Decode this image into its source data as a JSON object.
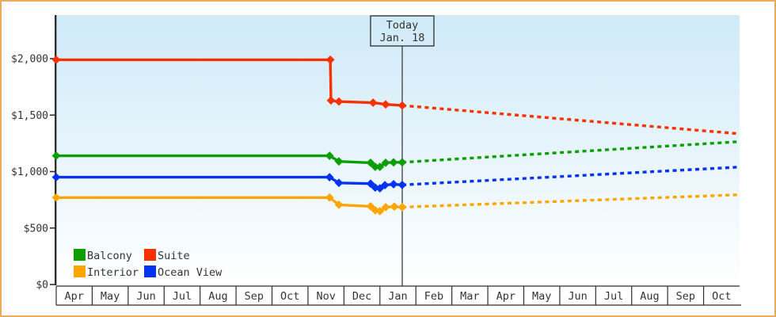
{
  "window": {
    "border_color": "#edaa5e",
    "background": "#ffffff"
  },
  "chart_data": {
    "type": "line",
    "title": "",
    "description": "Cruise cabin price history with dotted future forecast",
    "plot": {
      "bg_gradient_top": "#cfeaf8",
      "bg_gradient_bottom": "#ffffff",
      "axis_color": "#2e2e2e",
      "label_color": "#333333",
      "grid": "off",
      "today_line_color": "#4a4a4a"
    },
    "y_axis": {
      "ticks": [
        {
          "value": 0,
          "label": "$0"
        },
        {
          "value": 500,
          "label": "$500"
        },
        {
          "value": 1000,
          "label": "$1,000"
        },
        {
          "value": 1500,
          "label": "$1,500"
        },
        {
          "value": 2000,
          "label": "$2,000"
        }
      ],
      "ylim": [
        0,
        2386
      ]
    },
    "x_axis": {
      "categories": [
        "Apr",
        "May",
        "Jun",
        "Jul",
        "Aug",
        "Sep",
        "Oct",
        "Nov",
        "Dec",
        "Jan",
        "Feb",
        "Mar",
        "Apr",
        "May",
        "Jun",
        "Jul",
        "Aug",
        "Sep",
        "Oct"
      ]
    },
    "today": {
      "label": "Today",
      "date": "Jan. 18",
      "x": 9.62
    },
    "series": [
      {
        "name": "Suite",
        "color": "#f93000",
        "history": [
          [
            0,
            1990
          ],
          [
            7.62,
            1990
          ],
          [
            7.64,
            1630
          ],
          [
            7.86,
            1620
          ],
          [
            8.81,
            1610
          ],
          [
            9.16,
            1595
          ],
          [
            9.62,
            1585
          ]
        ],
        "forecast": [
          [
            9.62,
            1585
          ],
          [
            19,
            1335
          ]
        ]
      },
      {
        "name": "Balcony",
        "color": "#0a9e00",
        "history": [
          [
            0,
            1140
          ],
          [
            7.6,
            1140
          ],
          [
            7.86,
            1090
          ],
          [
            8.74,
            1078
          ],
          [
            8.87,
            1042
          ],
          [
            9.0,
            1042
          ],
          [
            9.16,
            1078
          ],
          [
            9.38,
            1082
          ],
          [
            9.62,
            1082
          ]
        ],
        "forecast": [
          [
            9.62,
            1082
          ],
          [
            19,
            1265
          ]
        ]
      },
      {
        "name": "Ocean View",
        "color": "#0433f0",
        "history": [
          [
            0,
            950
          ],
          [
            7.6,
            950
          ],
          [
            7.86,
            900
          ],
          [
            8.74,
            893
          ],
          [
            8.87,
            858
          ],
          [
            9.0,
            852
          ],
          [
            9.14,
            880
          ],
          [
            9.38,
            888
          ],
          [
            9.62,
            882
          ]
        ],
        "forecast": [
          [
            9.62,
            882
          ],
          [
            19,
            1040
          ]
        ]
      },
      {
        "name": "Interior",
        "color": "#ffa500",
        "history": [
          [
            0,
            770
          ],
          [
            7.6,
            770
          ],
          [
            7.86,
            706
          ],
          [
            8.74,
            692
          ],
          [
            8.87,
            657
          ],
          [
            9.0,
            650
          ],
          [
            9.16,
            684
          ],
          [
            9.4,
            690
          ],
          [
            9.62,
            685
          ]
        ],
        "forecast": [
          [
            9.62,
            685
          ],
          [
            19,
            795
          ]
        ]
      }
    ],
    "legend": {
      "rows": [
        [
          "Balcony",
          "Suite"
        ],
        [
          "Interior",
          "Ocean View"
        ]
      ]
    }
  }
}
